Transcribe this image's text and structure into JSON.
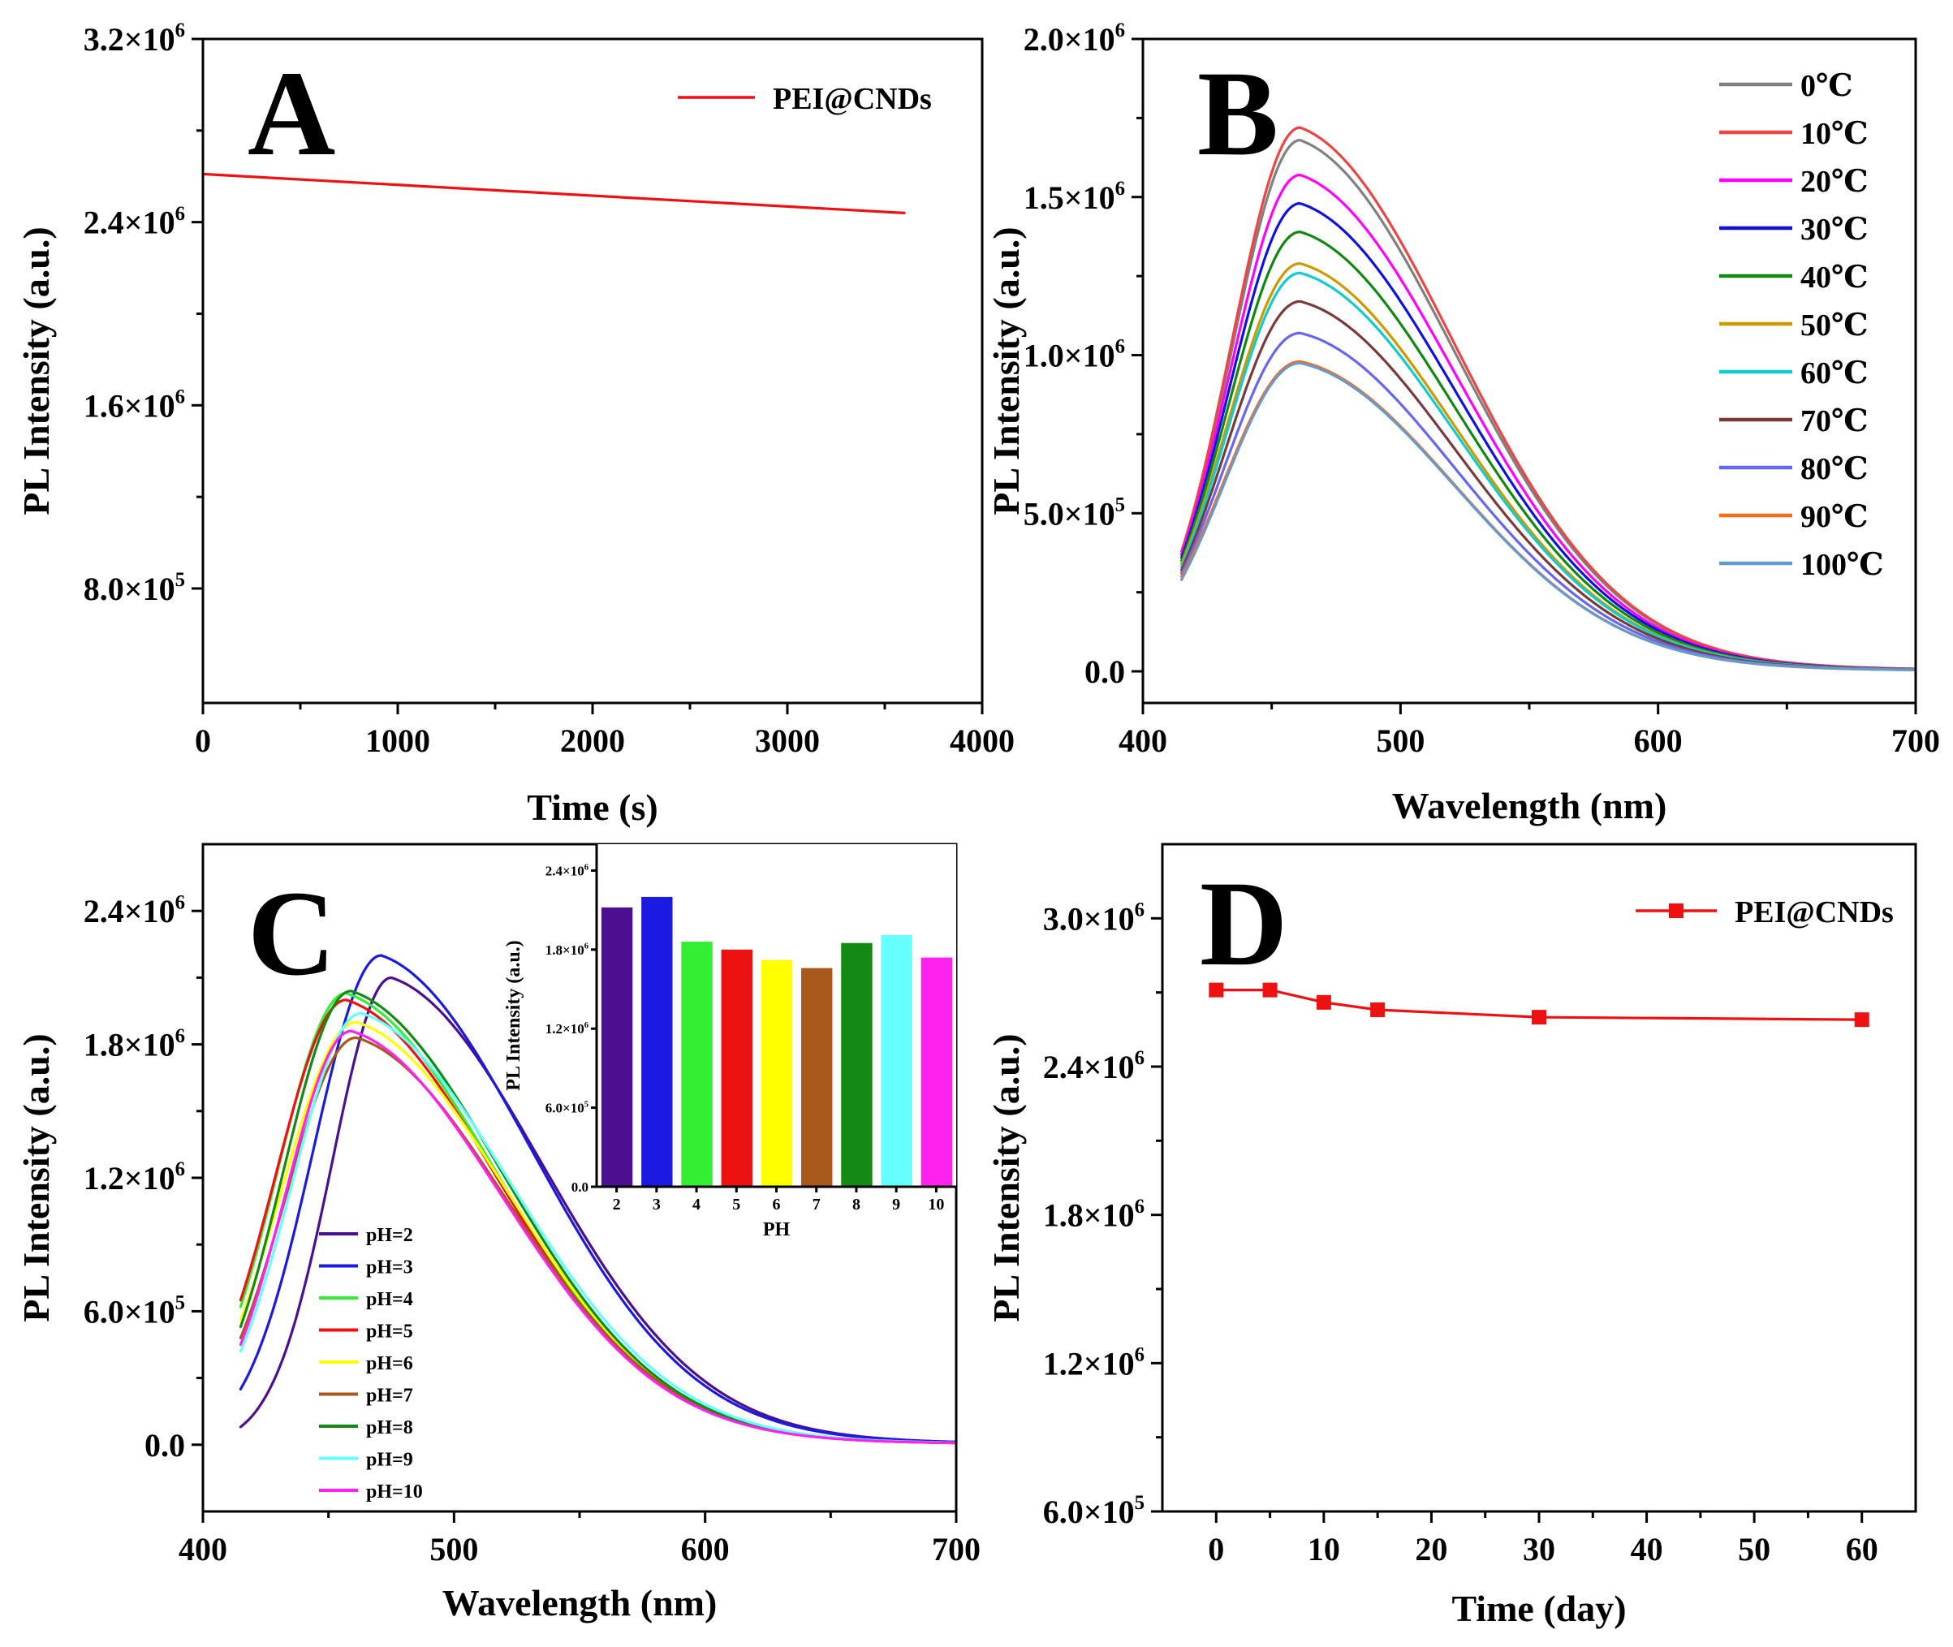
{
  "chart_data": [
    {
      "panel": "A",
      "type": "line",
      "xlabel": "Time (s)",
      "ylabel": "PL Intensity (a.u.)",
      "xlim": [
        0,
        4000
      ],
      "ylim": [
        300000,
        3200000
      ],
      "xticks": [
        0,
        1000,
        2000,
        3000,
        4000
      ],
      "xtick_labels": [
        "0",
        "1000",
        "2000",
        "3000",
        "4000"
      ],
      "yticks": [
        800000,
        1600000,
        2400000,
        3200000
      ],
      "ytick_labels": [
        {
          "mant": "8.0×10",
          "exp": "5"
        },
        {
          "mant": "1.6×10",
          "exp": "6"
        },
        {
          "mant": "2.4×10",
          "exp": "6"
        },
        {
          "mant": "3.2×10",
          "exp": "6"
        }
      ],
      "legend": [
        "PEI@CNDs"
      ],
      "series": [
        {
          "name": "PEI@CNDs",
          "color": "#ee1111",
          "x": [
            0,
            3600
          ],
          "y": [
            2610000,
            2440000
          ]
        }
      ]
    },
    {
      "panel": "B",
      "type": "line",
      "xlabel": "Wavelength (nm)",
      "ylabel": "PL Intensity (a.u.)",
      "xlim": [
        400,
        700
      ],
      "ylim": [
        -100000,
        2000000
      ],
      "xticks": [
        400,
        500,
        600,
        700
      ],
      "xtick_labels": [
        "400",
        "500",
        "600",
        "700"
      ],
      "yticks": [
        0,
        500000,
        1000000,
        1500000,
        2000000
      ],
      "ytick_labels": [
        {
          "mant": "0.0",
          "exp": ""
        },
        {
          "mant": "5.0×10",
          "exp": "5"
        },
        {
          "mant": "1.0×10",
          "exp": "6"
        },
        {
          "mant": "1.5×10",
          "exp": "6"
        },
        {
          "mant": "2.0×10",
          "exp": "6"
        }
      ],
      "x_start": 415,
      "series": [
        {
          "name": "0℃",
          "color": "#808080",
          "peak_x": 461,
          "peak_y": 1680000,
          "start_y": 370000
        },
        {
          "name": "10℃",
          "color": "#ee4444",
          "peak_x": 461,
          "peak_y": 1720000,
          "start_y": 380000
        },
        {
          "name": "20℃",
          "color": "#ff00ff",
          "peak_x": 461,
          "peak_y": 1570000,
          "start_y": 370000
        },
        {
          "name": "30℃",
          "color": "#1010e0",
          "peak_x": 461,
          "peak_y": 1480000,
          "start_y": 360000
        },
        {
          "name": "40℃",
          "color": "#118811",
          "peak_x": 461,
          "peak_y": 1390000,
          "start_y": 350000
        },
        {
          "name": "50℃",
          "color": "#cc9900",
          "peak_x": 461,
          "peak_y": 1290000,
          "start_y": 340000
        },
        {
          "name": "60℃",
          "color": "#11cccc",
          "peak_x": 461,
          "peak_y": 1260000,
          "start_y": 330000
        },
        {
          "name": "70℃",
          "color": "#7a3a3a",
          "peak_x": 461,
          "peak_y": 1170000,
          "start_y": 320000
        },
        {
          "name": "80℃",
          "color": "#6666ee",
          "peak_x": 461,
          "peak_y": 1070000,
          "start_y": 310000
        },
        {
          "name": "90℃",
          "color": "#ff6a1a",
          "peak_x": 461,
          "peak_y": 980000,
          "start_y": 300000
        },
        {
          "name": "100℃",
          "color": "#6699cc",
          "peak_x": 461,
          "peak_y": 975000,
          "start_y": 290000
        }
      ]
    },
    {
      "panel": "C",
      "type": "line",
      "xlabel": "Wavelength (nm)",
      "ylabel": "PL Intensity (a.u.)",
      "xlim": [
        400,
        700
      ],
      "ylim": [
        -300000,
        2700000
      ],
      "xticks": [
        400,
        500,
        600,
        700
      ],
      "xtick_labels": [
        "400",
        "500",
        "600",
        "700"
      ],
      "yticks": [
        0,
        600000,
        1200000,
        1800000,
        2400000
      ],
      "ytick_labels": [
        {
          "mant": "0.0",
          "exp": ""
        },
        {
          "mant": "6.0×10",
          "exp": "5"
        },
        {
          "mant": "1.2×10",
          "exp": "6"
        },
        {
          "mant": "1.8×10",
          "exp": "6"
        },
        {
          "mant": "2.4×10",
          "exp": "6"
        }
      ],
      "x_start": 415,
      "series": [
        {
          "name": "pH=2",
          "color": "#4b0f8f",
          "peak_x": 475,
          "peak_y": 2100000,
          "start_y": 80000
        },
        {
          "name": "pH=3",
          "color": "#1a1ae0",
          "peak_x": 471,
          "peak_y": 2200000,
          "start_y": 250000
        },
        {
          "name": "pH=4",
          "color": "#33ee33",
          "peak_x": 457,
          "peak_y": 2030000,
          "start_y": 620000
        },
        {
          "name": "pH=5",
          "color": "#ee1111",
          "peak_x": 457,
          "peak_y": 2000000,
          "start_y": 650000
        },
        {
          "name": "pH=6",
          "color": "#ffff00",
          "peak_x": 461,
          "peak_y": 1900000,
          "start_y": 560000
        },
        {
          "name": "pH=7",
          "color": "#a8581a",
          "peak_x": 461,
          "peak_y": 1830000,
          "start_y": 480000
        },
        {
          "name": "pH=8",
          "color": "#138a13",
          "peak_x": 459,
          "peak_y": 2040000,
          "start_y": 530000
        },
        {
          "name": "pH=9",
          "color": "#66ffff",
          "peak_x": 463,
          "peak_y": 1940000,
          "start_y": 420000
        },
        {
          "name": "pH=10",
          "color": "#ff22ee",
          "peak_x": 459,
          "peak_y": 1860000,
          "start_y": 450000
        }
      ],
      "inset": {
        "type": "bar",
        "xlabel": "PH",
        "ylabel": "PL Intensity (a.u.)",
        "ylim": [
          0,
          2600000
        ],
        "yticks": [
          0,
          600000,
          1200000,
          1800000,
          2400000
        ],
        "ytick_labels": [
          {
            "mant": "0.0",
            "exp": ""
          },
          {
            "mant": "6.0×10",
            "exp": "5"
          },
          {
            "mant": "1.2×10",
            "exp": "6"
          },
          {
            "mant": "1.8×10",
            "exp": "6"
          },
          {
            "mant": "2.4×10",
            "exp": "6"
          }
        ],
        "categories": [
          "2",
          "3",
          "4",
          "5",
          "6",
          "7",
          "8",
          "9",
          "10"
        ],
        "values": [
          2120000,
          2200000,
          1860000,
          1800000,
          1720000,
          1660000,
          1850000,
          1910000,
          1740000
        ],
        "colors": [
          "#4b0f8f",
          "#1a1ae0",
          "#33ee33",
          "#ee1111",
          "#ffff00",
          "#a8581a",
          "#138a13",
          "#66ffff",
          "#ff22ee"
        ]
      }
    },
    {
      "panel": "D",
      "type": "line",
      "xlabel": "Time (day)",
      "ylabel": "PL Intensity (a.u.)",
      "xlim": [
        -5,
        65
      ],
      "ylim": [
        600000,
        3300000
      ],
      "xticks": [
        0,
        10,
        20,
        30,
        40,
        50,
        60
      ],
      "xtick_labels": [
        "0",
        "10",
        "20",
        "30",
        "40",
        "50",
        "60"
      ],
      "yticks": [
        600000,
        1200000,
        1800000,
        2400000,
        3000000
      ],
      "ytick_labels": [
        {
          "mant": "6.0×10",
          "exp": "5"
        },
        {
          "mant": "1.2×10",
          "exp": "6"
        },
        {
          "mant": "1.8×10",
          "exp": "6"
        },
        {
          "mant": "2.4×10",
          "exp": "6"
        },
        {
          "mant": "3.0×10",
          "exp": "6"
        }
      ],
      "legend": [
        "PEI@CNDs"
      ],
      "series": [
        {
          "name": "PEI@CNDs",
          "color": "#ee1111",
          "marker": "square",
          "x": [
            0,
            5,
            10,
            15,
            30,
            60
          ],
          "y": [
            2710000,
            2710000,
            2660000,
            2630000,
            2600000,
            2590000
          ]
        }
      ]
    }
  ]
}
